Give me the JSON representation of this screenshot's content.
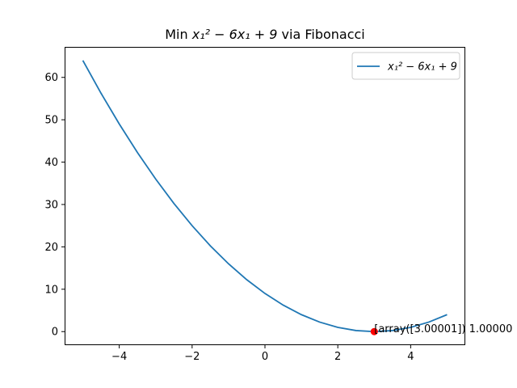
{
  "chart_data": {
    "type": "line",
    "title": {
      "prefix": "Min ",
      "math": "x₁² − 6x₁ + 9",
      "suffix": " via Fibonacci"
    },
    "xlabel": "",
    "ylabel": "",
    "xlim": [
      -5.5,
      5.5
    ],
    "ylim": [
      -3.2,
      67.2
    ],
    "grid": false,
    "legend_position": "top-right",
    "x_ticks": [
      -4,
      -2,
      0,
      2,
      4
    ],
    "x_tick_labels": [
      "−4",
      "−2",
      "0",
      "2",
      "4"
    ],
    "y_ticks": [
      0,
      10,
      20,
      30,
      40,
      50,
      60
    ],
    "y_tick_labels": [
      "0",
      "10",
      "20",
      "30",
      "40",
      "50",
      "60"
    ],
    "series": [
      {
        "name": "x₁² − 6x₁ + 9",
        "color": "#1f77b4",
        "x": [
          -5,
          -4.5,
          -4,
          -3.5,
          -3,
          -2.5,
          -2,
          -1.5,
          -1,
          -0.5,
          0,
          0.5,
          1,
          1.5,
          2,
          2.5,
          3,
          3.5,
          4,
          4.5,
          5
        ],
        "y": [
          64,
          56.25,
          49,
          42.25,
          36,
          30.25,
          25,
          20.25,
          16,
          12.25,
          9,
          6.25,
          4,
          2.25,
          1,
          0.25,
          0,
          0.25,
          1,
          2.25,
          4
        ]
      }
    ],
    "minimum_point": {
      "x": 3.00001,
      "y": 0,
      "color": "#ff0000",
      "label": "[array([3.00001]) 1.00000"
    }
  }
}
